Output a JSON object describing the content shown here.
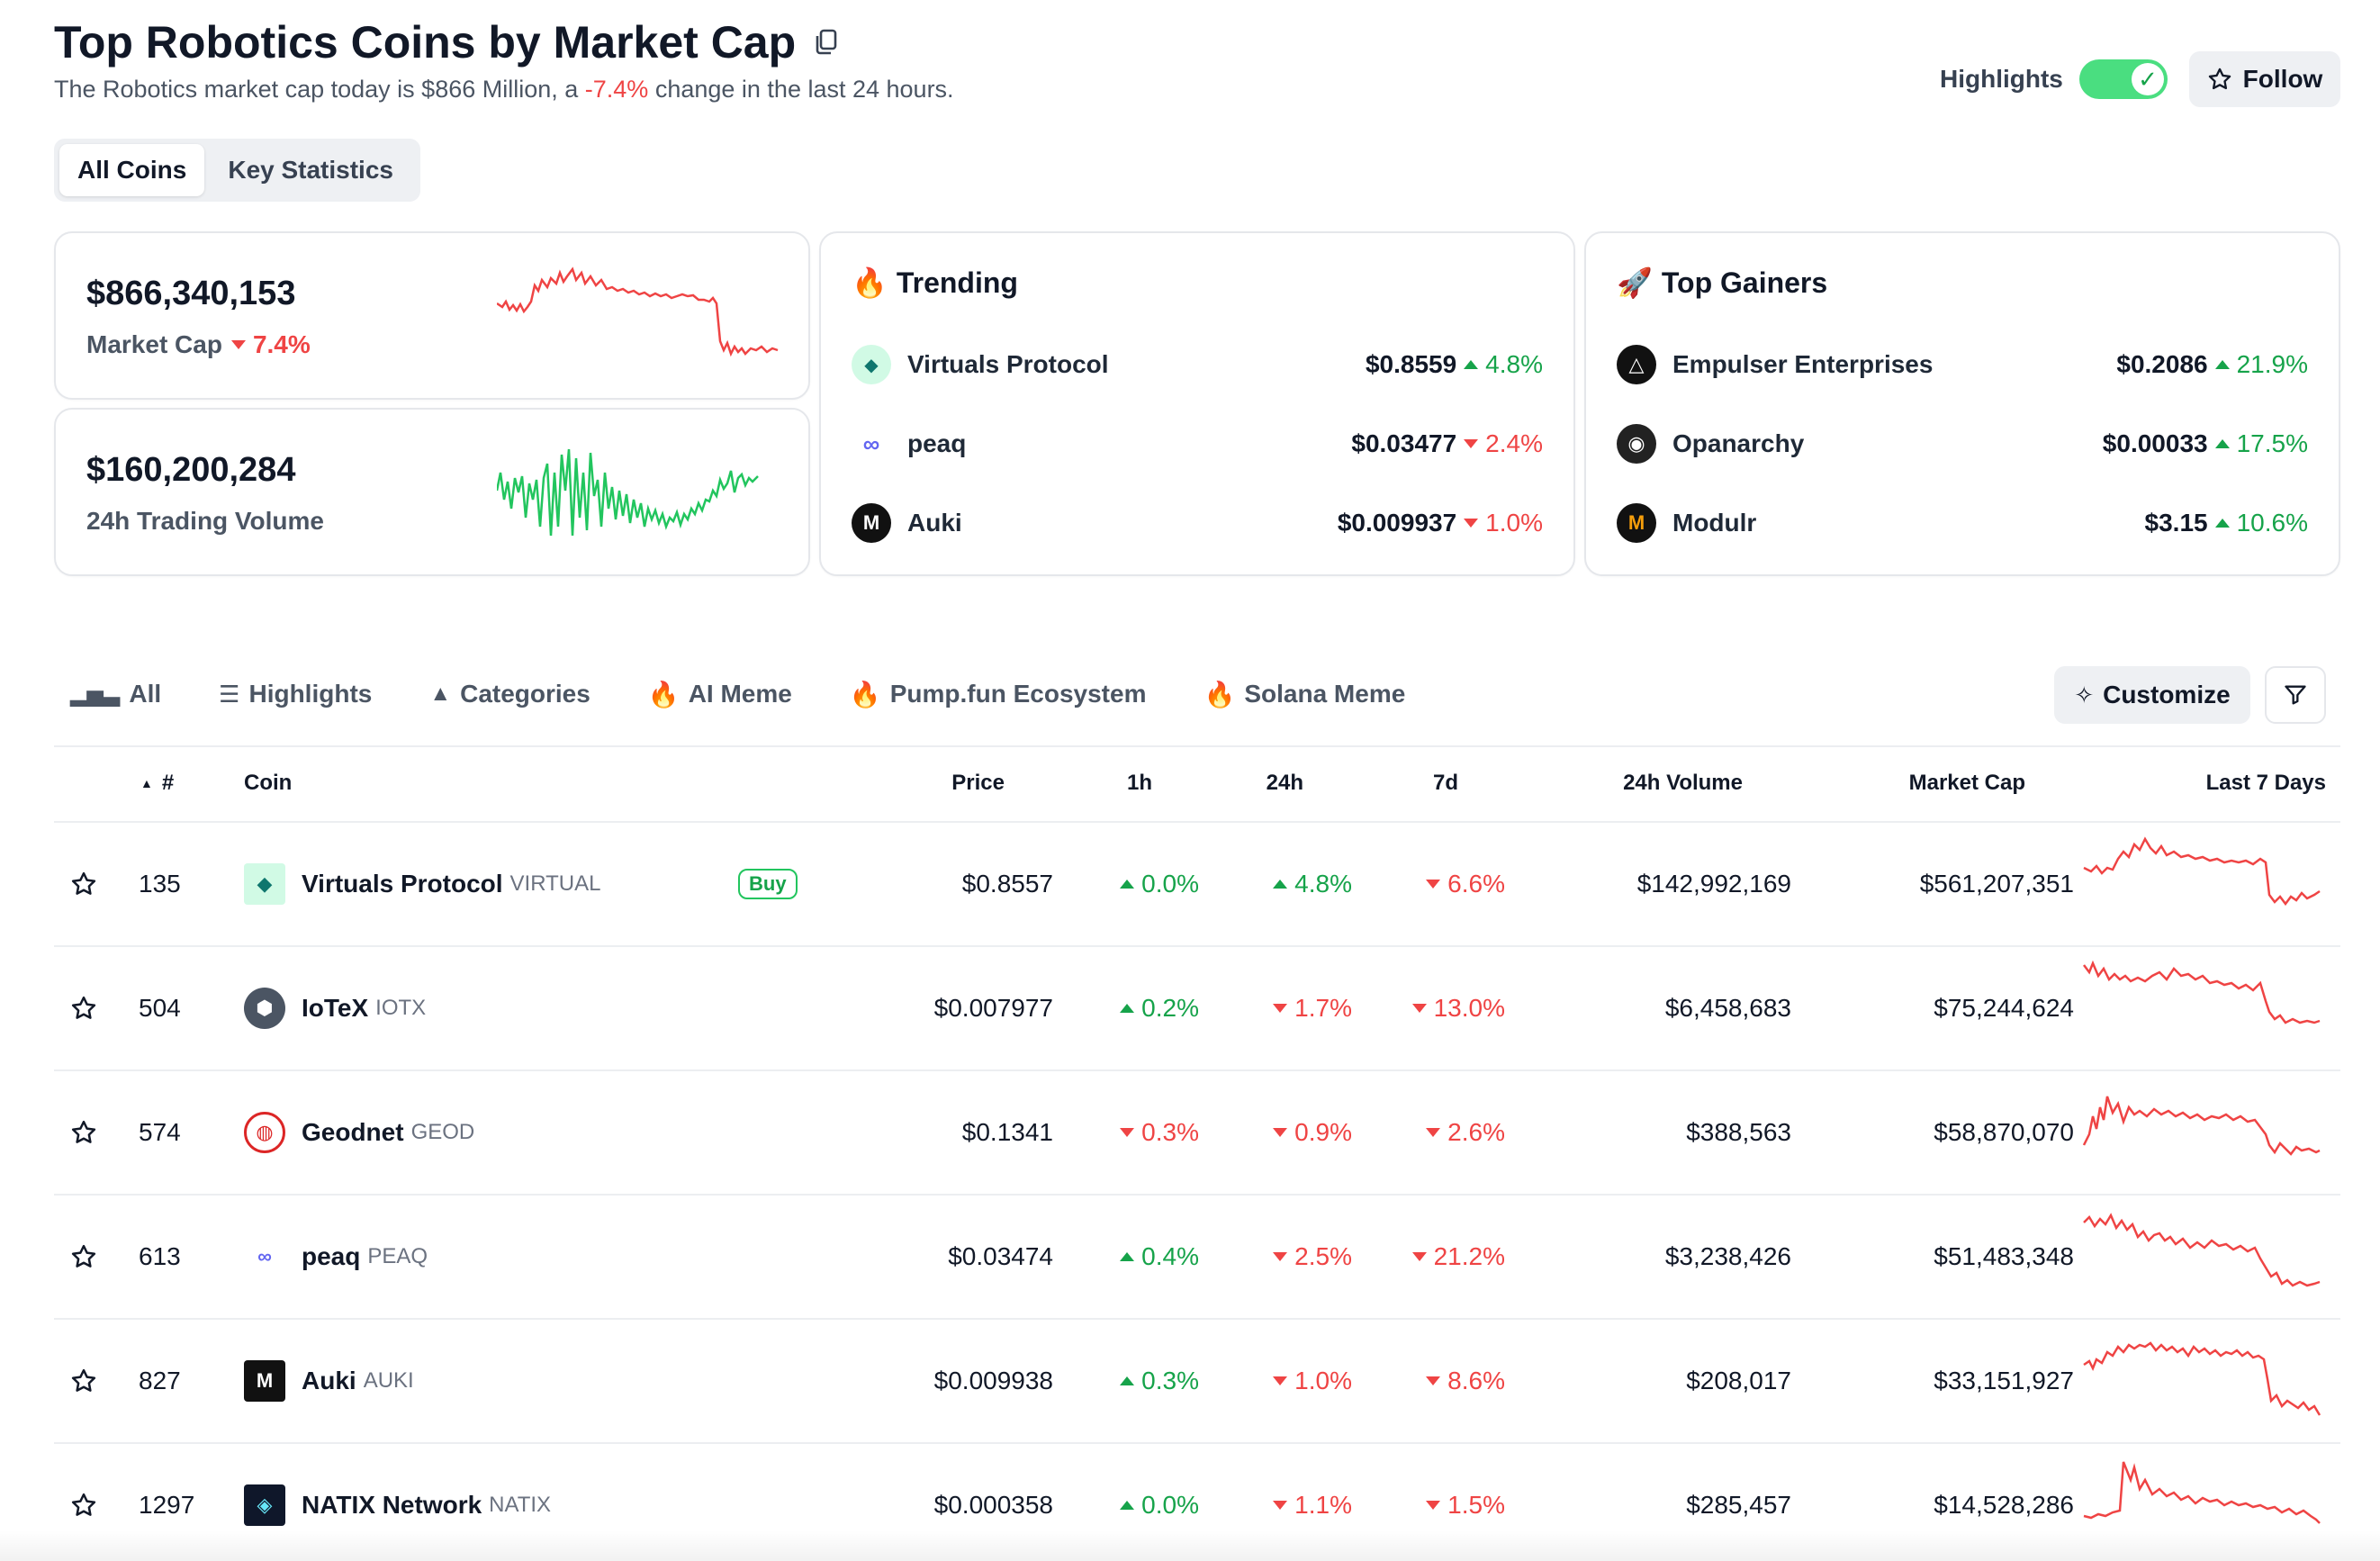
{
  "header": {
    "title": "Top Robotics Coins by Market Cap",
    "subtitle_pre": "The Robotics market cap today is $866 Million, a ",
    "subtitle_change": "-7.4%",
    "subtitle_post": " change in the last 24 hours.",
    "highlights_label": "Highlights",
    "highlights_on": true,
    "follow_label": "Follow"
  },
  "view_tabs": [
    "All Coins",
    "Key Statistics"
  ],
  "stats": {
    "market_cap_value": "$866,340,153",
    "market_cap_label": "Market Cap",
    "market_cap_change": "7.4%",
    "volume_value": "$160,200,284",
    "volume_label": "24h Trading Volume"
  },
  "trending": {
    "title": "Trending",
    "emoji": "🔥",
    "items": [
      {
        "name": "Virtuals Protocol",
        "price": "$0.8559",
        "change": "4.8%",
        "dir": "up"
      },
      {
        "name": "peaq",
        "price": "$0.03477",
        "change": "2.4%",
        "dir": "down"
      },
      {
        "name": "Auki",
        "price": "$0.009937",
        "change": "1.0%",
        "dir": "down"
      }
    ]
  },
  "gainers": {
    "title": "Top Gainers",
    "emoji": "🚀",
    "items": [
      {
        "name": "Empulser Enterprises",
        "price": "$0.2086",
        "change": "21.9%",
        "dir": "up"
      },
      {
        "name": "Opanarchy",
        "price": "$0.00033",
        "change": "17.5%",
        "dir": "up"
      },
      {
        "name": "Modulr",
        "price": "$3.15",
        "change": "10.6%",
        "dir": "up"
      }
    ]
  },
  "filters": [
    "All",
    "Highlights",
    "Categories",
    "AI Meme",
    "Pump.fun Ecosystem",
    "Solana Meme"
  ],
  "customize_label": "Customize",
  "table": {
    "headers": [
      "#",
      "Coin",
      "Price",
      "1h",
      "24h",
      "7d",
      "24h Volume",
      "Market Cap",
      "Last 7 Days"
    ],
    "buy_label": "Buy",
    "rows": [
      {
        "rank": "135",
        "name": "Virtuals Protocol",
        "symbol": "VIRTUAL",
        "price": "$0.8557",
        "h1": "0.0%",
        "h1_dir": "up",
        "h24": "4.8%",
        "h24_dir": "up",
        "d7": "6.6%",
        "d7_dir": "down",
        "volume": "$142,992,169",
        "mcap": "$561,207,351"
      },
      {
        "rank": "504",
        "name": "IoTeX",
        "symbol": "IOTX",
        "price": "$0.007977",
        "h1": "0.2%",
        "h1_dir": "up",
        "h24": "1.7%",
        "h24_dir": "down",
        "d7": "13.0%",
        "d7_dir": "down",
        "volume": "$6,458,683",
        "mcap": "$75,244,624"
      },
      {
        "rank": "574",
        "name": "Geodnet",
        "symbol": "GEOD",
        "price": "$0.1341",
        "h1": "0.3%",
        "h1_dir": "down",
        "h24": "0.9%",
        "h24_dir": "down",
        "d7": "2.6%",
        "d7_dir": "down",
        "volume": "$388,563",
        "mcap": "$58,870,070"
      },
      {
        "rank": "613",
        "name": "peaq",
        "symbol": "PEAQ",
        "price": "$0.03474",
        "h1": "0.4%",
        "h1_dir": "up",
        "h24": "2.5%",
        "h24_dir": "down",
        "d7": "21.2%",
        "d7_dir": "down",
        "volume": "$3,238,426",
        "mcap": "$51,483,348"
      },
      {
        "rank": "827",
        "name": "Auki",
        "symbol": "AUKI",
        "price": "$0.009938",
        "h1": "0.3%",
        "h1_dir": "up",
        "h24": "1.0%",
        "h24_dir": "down",
        "d7": "8.6%",
        "d7_dir": "down",
        "volume": "$208,017",
        "mcap": "$33,151,927"
      },
      {
        "rank": "1297",
        "name": "NATIX Network",
        "symbol": "NATIX",
        "price": "$0.000358",
        "h1": "0.0%",
        "h1_dir": "up",
        "h24": "1.1%",
        "h24_dir": "down",
        "d7": "1.5%",
        "d7_dir": "down",
        "volume": "$285,457",
        "mcap": "$14,528,286"
      }
    ]
  },
  "colors": {
    "up": "#16a34a",
    "down": "#ef4444",
    "toggle": "#4ade80"
  }
}
